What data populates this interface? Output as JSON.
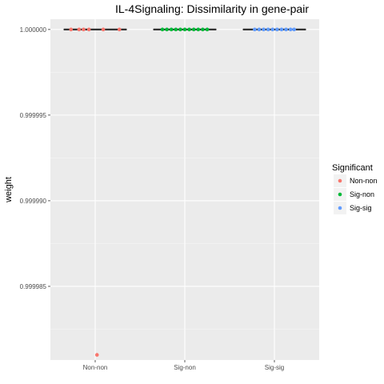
{
  "chart_data": {
    "type": "boxplot",
    "title": "IL-4Signaling: Dissimilarity in gene-pair",
    "xlabel": "",
    "ylabel": "weight",
    "categories": [
      "Non-non",
      "Sig-non",
      "Sig-sig"
    ],
    "y_ticks": [
      "0.999985",
      "0.999990",
      "0.999995",
      "1.000000"
    ],
    "y_tick_values": [
      0.999985,
      0.99999,
      0.999995,
      1.0
    ],
    "ylim": [
      0.9999807,
      1.0000006
    ],
    "grid": true,
    "legend": {
      "title": "Significant",
      "position": "right",
      "entries": [
        {
          "label": "Non-non",
          "color": "#F8766D"
        },
        {
          "label": "Sig-non",
          "color": "#00BA38"
        },
        {
          "label": "Sig-sig",
          "color": "#619CFF"
        }
      ]
    },
    "boxes": [
      {
        "category": "Non-non",
        "median": 1.0,
        "q1": 1.0,
        "q3": 1.0
      },
      {
        "category": "Sig-non",
        "median": 1.0,
        "q1": 1.0,
        "q3": 1.0
      },
      {
        "category": "Sig-sig",
        "median": 1.0,
        "q1": 1.0,
        "q3": 1.0
      }
    ],
    "series": [
      {
        "name": "Non-non",
        "color": "#F8766D",
        "points": [
          {
            "x": -0.27,
            "y": 1.0
          },
          {
            "x": -0.18,
            "y": 1.0
          },
          {
            "x": -0.13,
            "y": 1.0
          },
          {
            "x": -0.07,
            "y": 1.0
          },
          {
            "x": 0.09,
            "y": 1.0
          },
          {
            "x": 0.27,
            "y": 1.0
          },
          {
            "x": 0.02,
            "y": 0.999981
          }
        ]
      },
      {
        "name": "Sig-non",
        "color": "#00BA38",
        "points": [
          {
            "x": -0.25,
            "y": 1.0
          },
          {
            "x": -0.2,
            "y": 1.0
          },
          {
            "x": -0.15,
            "y": 1.0
          },
          {
            "x": -0.1,
            "y": 1.0
          },
          {
            "x": -0.05,
            "y": 1.0
          },
          {
            "x": 0.0,
            "y": 1.0
          },
          {
            "x": 0.05,
            "y": 1.0
          },
          {
            "x": 0.1,
            "y": 1.0
          },
          {
            "x": 0.15,
            "y": 1.0
          },
          {
            "x": 0.2,
            "y": 1.0
          },
          {
            "x": 0.25,
            "y": 1.0
          }
        ]
      },
      {
        "name": "Sig-sig",
        "color": "#619CFF",
        "points": [
          {
            "x": -0.22,
            "y": 1.0
          },
          {
            "x": -0.17,
            "y": 1.0
          },
          {
            "x": -0.12,
            "y": 1.0
          },
          {
            "x": -0.07,
            "y": 1.0
          },
          {
            "x": -0.02,
            "y": 1.0
          },
          {
            "x": 0.03,
            "y": 1.0
          },
          {
            "x": 0.08,
            "y": 1.0
          },
          {
            "x": 0.13,
            "y": 1.0
          },
          {
            "x": 0.18,
            "y": 1.0
          },
          {
            "x": 0.22,
            "y": 1.0
          }
        ]
      }
    ]
  }
}
